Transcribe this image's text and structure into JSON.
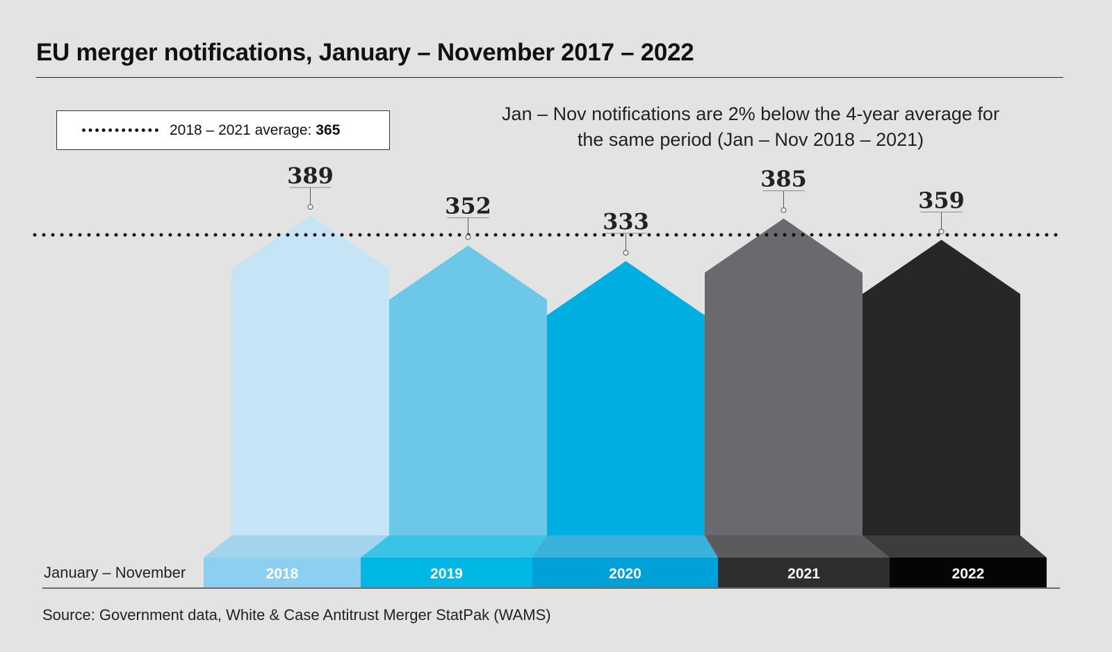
{
  "title": "EU merger notifications, January – November 2017 – 2022",
  "legend": {
    "label": "2018 – 2021 average:",
    "value": "365"
  },
  "note": "Jan – Nov notifications are 2% below the 4-year average for the same period (Jan – Nov 2018 – 2021)",
  "axis_caption": "January – November",
  "source": "Source: Government data, White & Case Antitrust Merger StatPak (WAMS)",
  "chart_data": {
    "type": "bar",
    "title": "EU merger notifications, January – November 2017 – 2022",
    "xlabel": "January – November",
    "ylabel": "",
    "categories": [
      "2018",
      "2019",
      "2020",
      "2021",
      "2022"
    ],
    "values": [
      389,
      352,
      333,
      385,
      359
    ],
    "average": {
      "label": "2018 – 2021 average",
      "value": 365,
      "style": "dotted"
    },
    "colors": [
      "#c5e4f5",
      "#6cc7e9",
      "#00aee1",
      "#6a696e",
      "#272727"
    ],
    "base_colors": [
      "#8ccff0",
      "#00b8e6",
      "#00a0d8",
      "#2e2d30",
      "#050505"
    ],
    "grid": false,
    "legend_position": "top-left"
  }
}
